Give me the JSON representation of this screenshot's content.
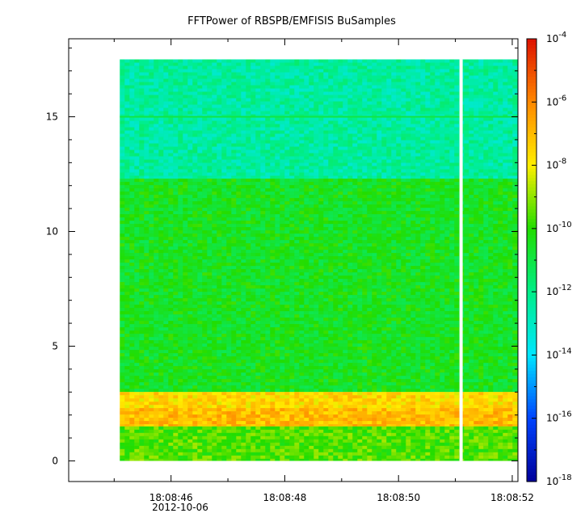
{
  "chart_data": {
    "type": "heatmap",
    "title": "FFTPower of RBSPB/EMFISIS  BuSamples",
    "xlabel": "",
    "ylabel": "",
    "x_ticks": [
      "18:08:46",
      "18:08:48",
      "18:08:50",
      "18:08:52"
    ],
    "x_date_label": "2012-10-06",
    "x_range_seconds": [
      44.2,
      52.1
    ],
    "data_x_range_seconds": [
      45.1,
      52.1
    ],
    "gap_seconds": 51.1,
    "y_ticks": [
      0,
      5,
      10,
      15
    ],
    "ylim": [
      -0.9,
      18.4
    ],
    "data_y_range": [
      0,
      17.5
    ],
    "colorscale": {
      "type": "log",
      "range_exponent": [
        -18,
        -4
      ],
      "ticks": [
        {
          "base": "10",
          "exp": "-4",
          "value": -4
        },
        {
          "base": "10",
          "exp": "-6",
          "value": -6
        },
        {
          "base": "10",
          "exp": "-8",
          "value": -8
        },
        {
          "base": "10",
          "exp": "-10",
          "value": -10
        },
        {
          "base": "10",
          "exp": "-12",
          "value": -12
        },
        {
          "base": "10",
          "exp": "-14",
          "value": -14
        },
        {
          "base": "10",
          "exp": "-16",
          "value": -16
        },
        {
          "base": "10",
          "exp": "-18",
          "value": -18
        }
      ],
      "colors": [
        "#00009a",
        "#0044ff",
        "#00e6ff",
        "#00ee88",
        "#22dd00",
        "#ffee00",
        "#ff8800",
        "#dd1100"
      ]
    },
    "bands": [
      {
        "y_range": [
          12.3,
          17.5
        ],
        "level": -12.4
      },
      {
        "y_range": [
          3.0,
          12.3
        ],
        "level": -10.5
      },
      {
        "y_range": [
          2.3,
          3.0
        ],
        "level": -7.6
      },
      {
        "y_range": [
          1.5,
          2.3
        ],
        "level": -7.0
      },
      {
        "y_range": [
          0.0,
          1.5
        ],
        "level": -9.6
      }
    ],
    "line_feature": {
      "y": 15.0,
      "level": -11.0
    }
  }
}
